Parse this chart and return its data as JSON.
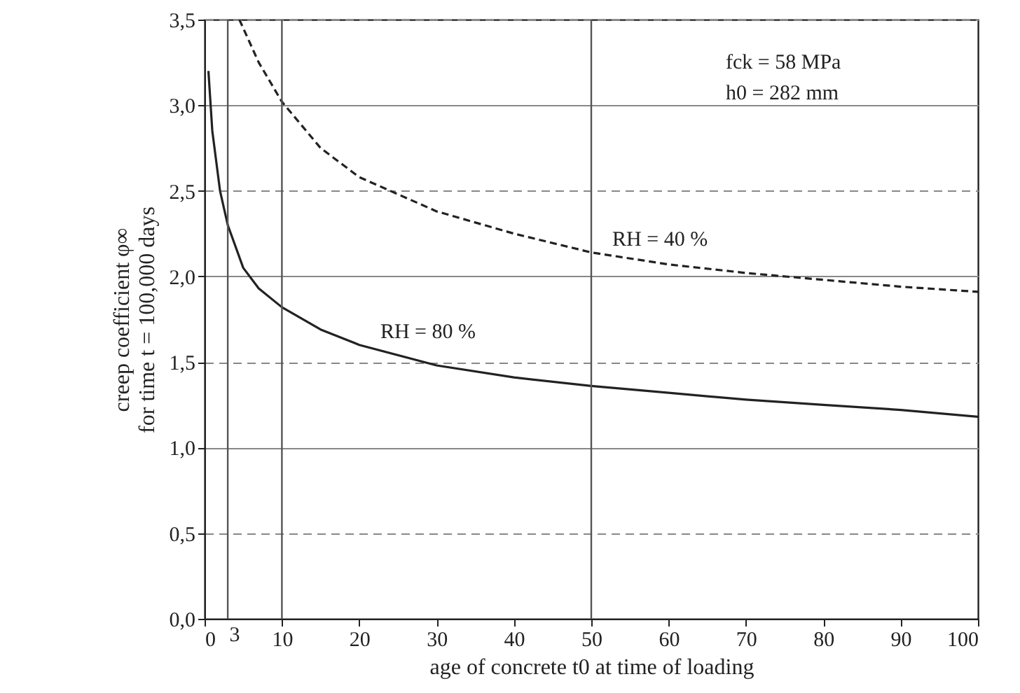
{
  "chart_data": {
    "type": "line",
    "xlabel": "age of concrete t0 at time of loading",
    "ylabel": [
      "creep coefficient φ∞",
      "for time t = 100,000 days"
    ],
    "series": [
      {
        "color": "#222222",
        "line_style": "solid",
        "x": [
          0.5,
          1,
          2,
          3,
          5,
          7,
          10,
          15,
          20,
          30,
          40,
          50,
          60,
          70,
          80,
          90,
          100
        ],
        "values": [
          3.2,
          2.85,
          2.5,
          2.3,
          2.05,
          1.93,
          1.82,
          1.69,
          1.6,
          1.48,
          1.41,
          1.36,
          1.32,
          1.28,
          1.25,
          1.22,
          1.18
        ]
      },
      {
        "color": "#222222",
        "line_style": "dashed",
        "x": [
          4.5,
          5,
          7,
          10,
          15,
          20,
          30,
          40,
          50,
          60,
          70,
          80,
          90,
          100
        ],
        "values": [
          3.5,
          3.45,
          3.25,
          3.02,
          2.75,
          2.58,
          2.38,
          2.25,
          2.14,
          2.07,
          2.02,
          1.98,
          1.94,
          1.91
        ]
      }
    ],
    "annotations": [
      {
        "text": "RH = 80 %",
        "x": 22,
        "y": 1.6
      },
      {
        "text": "RH = 40 %",
        "x": 52,
        "y": 2.14
      },
      "fck = 58 MPa",
      "h0 = 282 mm"
    ],
    "ref_lines": [
      {
        "axis": "x",
        "value": 3,
        "label": "3",
        "color": "#555555"
      },
      {
        "axis": "x",
        "value": 10,
        "label": null,
        "color": "#555555"
      },
      {
        "axis": "x",
        "value": 50,
        "label": null,
        "color": "#555555"
      }
    ],
    "xlim": [
      0,
      100
    ],
    "xticks": [
      0,
      10,
      20,
      30,
      40,
      50,
      60,
      70,
      80,
      90,
      100
    ],
    "ylim": [
      0,
      3.5
    ],
    "yticks": [
      {
        "value": 0,
        "label": "0,0"
      },
      {
        "value": 0.5,
        "label": "0,5"
      },
      {
        "value": 1,
        "label": "1,0"
      },
      {
        "value": 1.5,
        "label": "1,5"
      },
      {
        "value": 2,
        "label": "2,0"
      },
      {
        "value": 2.5,
        "label": "2,5"
      },
      {
        "value": 3,
        "label": "3,0"
      },
      {
        "value": 3.5,
        "label": "3,5"
      }
    ],
    "grid": "y",
    "marker": "none"
  }
}
